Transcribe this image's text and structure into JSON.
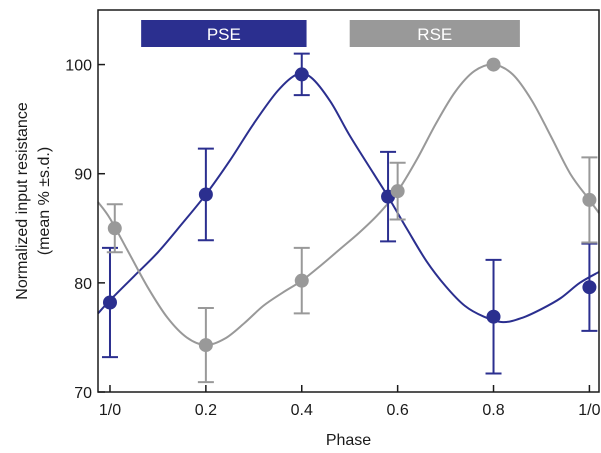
{
  "chart_data": {
    "type": "line",
    "xlabel": "Phase",
    "ylabel": "Normalized input resistance",
    "ylabel_sub": "(mean % ±s.d.)",
    "xlim": [
      -0.025,
      1.02
    ],
    "ylim": [
      70,
      105
    ],
    "x_ticks": [
      {
        "value": 0.0,
        "label": "1/0"
      },
      {
        "value": 0.2,
        "label": "0.2"
      },
      {
        "value": 0.4,
        "label": "0.4"
      },
      {
        "value": 0.6,
        "label": "0.6"
      },
      {
        "value": 0.8,
        "label": "0.8"
      },
      {
        "value": 1.0,
        "label": "1/0"
      }
    ],
    "y_ticks": [
      70,
      80,
      90,
      100
    ],
    "phase_bars": [
      {
        "label": "PSE",
        "start": 0.065,
        "end": 0.41,
        "color": "#2b2f8f"
      },
      {
        "label": "RSE",
        "start": 0.5,
        "end": 0.855,
        "color": "#999999"
      }
    ],
    "series": [
      {
        "color": "#2b2f8f",
        "points": [
          {
            "x": 0.0,
            "y": 78.2,
            "err": 5.0
          },
          {
            "x": 0.2,
            "y": 88.1,
            "err": 4.2
          },
          {
            "x": 0.4,
            "y": 99.1,
            "err": 1.9
          },
          {
            "x": 0.58,
            "y": 87.9,
            "err": 4.1
          },
          {
            "x": 0.8,
            "y": 76.9,
            "err": 5.2
          },
          {
            "x": 1.0,
            "y": 79.6,
            "err": 4.0
          }
        ],
        "curve": [
          [
            -0.025,
            77.2
          ],
          [
            0.0,
            78.4
          ],
          [
            0.05,
            80.6
          ],
          [
            0.1,
            82.8
          ],
          [
            0.15,
            85.4
          ],
          [
            0.2,
            88.1
          ],
          [
            0.25,
            91.2
          ],
          [
            0.3,
            94.6
          ],
          [
            0.35,
            97.6
          ],
          [
            0.39,
            99.1
          ],
          [
            0.42,
            98.8
          ],
          [
            0.46,
            96.6
          ],
          [
            0.5,
            93.5
          ],
          [
            0.55,
            90.0
          ],
          [
            0.58,
            87.9
          ],
          [
            0.62,
            84.9
          ],
          [
            0.66,
            82.0
          ],
          [
            0.7,
            79.7
          ],
          [
            0.74,
            77.9
          ],
          [
            0.78,
            76.9
          ],
          [
            0.82,
            76.4
          ],
          [
            0.86,
            76.8
          ],
          [
            0.9,
            77.6
          ],
          [
            0.94,
            78.6
          ],
          [
            0.98,
            80.0
          ],
          [
            1.02,
            81.0
          ]
        ]
      },
      {
        "color": "#999999",
        "points": [
          {
            "x": 0.01,
            "y": 85.0,
            "err": 2.2
          },
          {
            "x": 0.2,
            "y": 74.3,
            "err": 3.4
          },
          {
            "x": 0.4,
            "y": 80.2,
            "err": 3.0
          },
          {
            "x": 0.6,
            "y": 88.4,
            "err": 2.6
          },
          {
            "x": 0.8,
            "y": 100.0,
            "err": 0.0
          },
          {
            "x": 1.0,
            "y": 87.6,
            "err": 3.9
          }
        ],
        "curve": [
          [
            -0.025,
            87.4
          ],
          [
            0.0,
            85.9
          ],
          [
            0.04,
            82.7
          ],
          [
            0.08,
            79.5
          ],
          [
            0.12,
            76.8
          ],
          [
            0.16,
            75.0
          ],
          [
            0.2,
            74.3
          ],
          [
            0.24,
            74.9
          ],
          [
            0.28,
            76.3
          ],
          [
            0.32,
            77.9
          ],
          [
            0.36,
            79.1
          ],
          [
            0.4,
            80.2
          ],
          [
            0.44,
            81.6
          ],
          [
            0.48,
            83.1
          ],
          [
            0.52,
            84.6
          ],
          [
            0.56,
            86.3
          ],
          [
            0.6,
            88.4
          ],
          [
            0.64,
            91.3
          ],
          [
            0.68,
            94.6
          ],
          [
            0.72,
            97.5
          ],
          [
            0.76,
            99.4
          ],
          [
            0.8,
            100.0
          ],
          [
            0.84,
            99.1
          ],
          [
            0.88,
            96.7
          ],
          [
            0.92,
            93.4
          ],
          [
            0.96,
            90.0
          ],
          [
            1.0,
            87.6
          ],
          [
            1.02,
            86.4
          ]
        ]
      }
    ]
  }
}
